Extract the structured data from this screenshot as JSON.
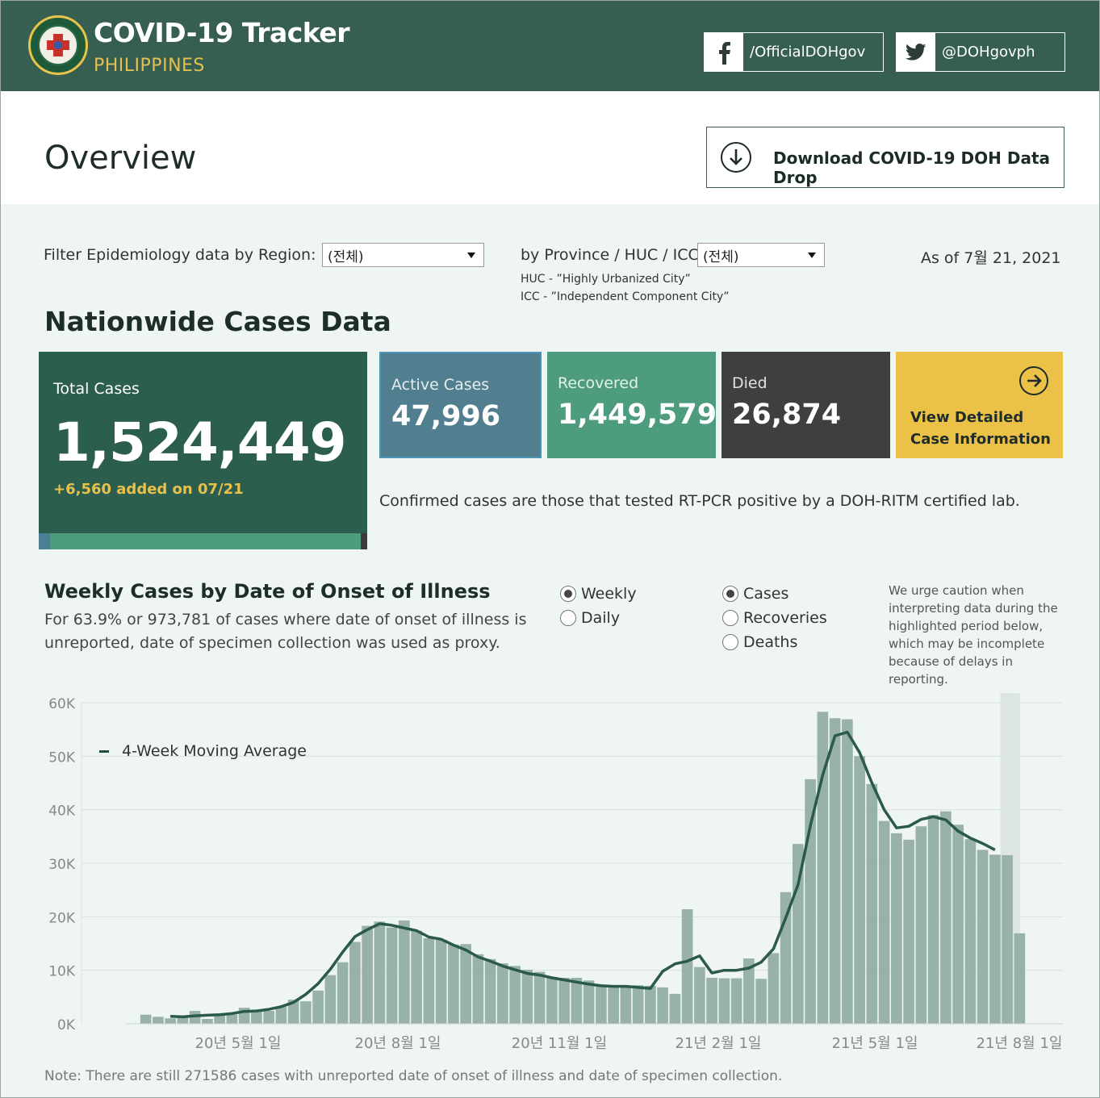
{
  "header": {
    "title": "COVID-19 Tracker",
    "subtitle": "PHILIPPINES",
    "facebook_label": "/OfficialDOHgov",
    "twitter_label": "@DOHgovph"
  },
  "overview": {
    "title": "Overview",
    "download_label": "Download COVID-19 DOH Data Drop"
  },
  "filters": {
    "region_label": "Filter Epidemiology data by Region:",
    "region_value": "(전체)",
    "province_label": "by Province / HUC / ICC:",
    "province_value": "(전체)",
    "huc_note": "HUC - ”Highly Urbanized City”",
    "icc_note": "ICC - ”Independent Component City”",
    "as_of": "As of 7월 21, 2021"
  },
  "nationwide": {
    "title": "Nationwide Cases Data",
    "total_label": "Total Cases",
    "total_value": "1,524,449",
    "total_added": "+6,560 added on 07/21",
    "active_label": "Active Cases",
    "active_value": "47,996",
    "recovered_label": "Recovered",
    "recovered_value": "1,449,579",
    "died_label": "Died",
    "died_value": "26,874",
    "detail_label": "View Detailed Case Information",
    "confirmed_note": "Confirmed cases are those that tested RT-PCR positive by a DOH-RITM certified lab."
  },
  "weekly": {
    "title": "Weekly Cases by Date of Onset of Illness",
    "subtitle": "For 63.9% or 973,781 of cases where date of onset of illness is unreported, date of specimen collection was used as proxy.",
    "period_options": [
      "Weekly",
      "Daily"
    ],
    "period_selected": "Weekly",
    "metric_options": [
      "Cases",
      "Recoveries",
      "Deaths"
    ],
    "metric_selected": "Cases",
    "caution": "We urge caution when interpreting data during the highlighted period below, which may be incomplete because of delays in reporting.",
    "legend_ma": "4-Week Moving Average",
    "footnote": "Note: There are still 271586 cases with unreported date of onset of illness and date of specimen collection."
  },
  "colors": {
    "header_bg": "#365e51",
    "accent_yellow": "#ebc247",
    "total_card": "#2c5e50",
    "active_card": "#517f8f",
    "recovered_card": "#4d9c7e",
    "died_card": "#3f3f3f",
    "bar": "#98b2a8",
    "moving_average": "#2a5a4a"
  },
  "icons": {
    "facebook": "facebook-icon",
    "twitter": "twitter-icon",
    "download": "download-arrow-icon",
    "detail": "arrow-right-circle-icon"
  },
  "chart_data": {
    "type": "bar",
    "x_tick_labels": [
      "20년 5월 1일",
      "20년 8월 1일",
      "20년 11월 1일",
      "21년 2월 1일",
      "21년 5월 1일",
      "21년 8월 1일"
    ],
    "y_tick_labels": [
      "0K",
      "10K",
      "20K",
      "30K",
      "40K",
      "50K",
      "60K"
    ],
    "ylim": [
      0,
      60000
    ],
    "grid": true,
    "highlighted_period": "last week (incomplete reporting)",
    "series": [
      {
        "type": "bar",
        "values": [
          1700,
          1300,
          1000,
          1300,
          2400,
          900,
          1500,
          1700,
          3000,
          2500,
          2400,
          3200,
          4500,
          4200,
          6200,
          9100,
          11500,
          15300,
          18300,
          19100,
          18000,
          19300,
          17400,
          16000,
          15700,
          14800,
          14900,
          13000,
          12100,
          11300,
          10800,
          10100,
          9700,
          8700,
          8600,
          8600,
          8100,
          7300,
          7200,
          7100,
          7200,
          7100,
          6800,
          5600,
          21400,
          10600,
          8600,
          8500,
          8500,
          12200,
          8400,
          13200,
          24600,
          33600,
          45700,
          58300,
          57100,
          56900,
          50000,
          44800,
          37900,
          35600,
          34400,
          36900,
          39000,
          39700,
          37200,
          34500,
          32500,
          31600,
          31500,
          16900
        ]
      },
      {
        "name": "4-Week Moving Average",
        "type": "line",
        "values": [
          null,
          null,
          1400,
          1300,
          1500,
          1600,
          1700,
          1900,
          2300,
          2400,
          2700,
          3200,
          4000,
          5500,
          7500,
          10200,
          13400,
          16300,
          17600,
          18700,
          18400,
          17900,
          17400,
          16200,
          15800,
          14700,
          13800,
          12500,
          11700,
          10800,
          10100,
          9400,
          9100,
          8600,
          8200,
          7800,
          7400,
          7100,
          7000,
          7000,
          6800,
          6600,
          9800,
          11200,
          11700,
          12700,
          9500,
          10000,
          10000,
          10400,
          11500,
          14000,
          19800,
          26000,
          37000,
          46500,
          53800,
          54500,
          50700,
          45000,
          40000,
          36600,
          36900,
          38200,
          38700,
          38100,
          36000,
          34700,
          33700,
          32500
        ]
      }
    ]
  }
}
